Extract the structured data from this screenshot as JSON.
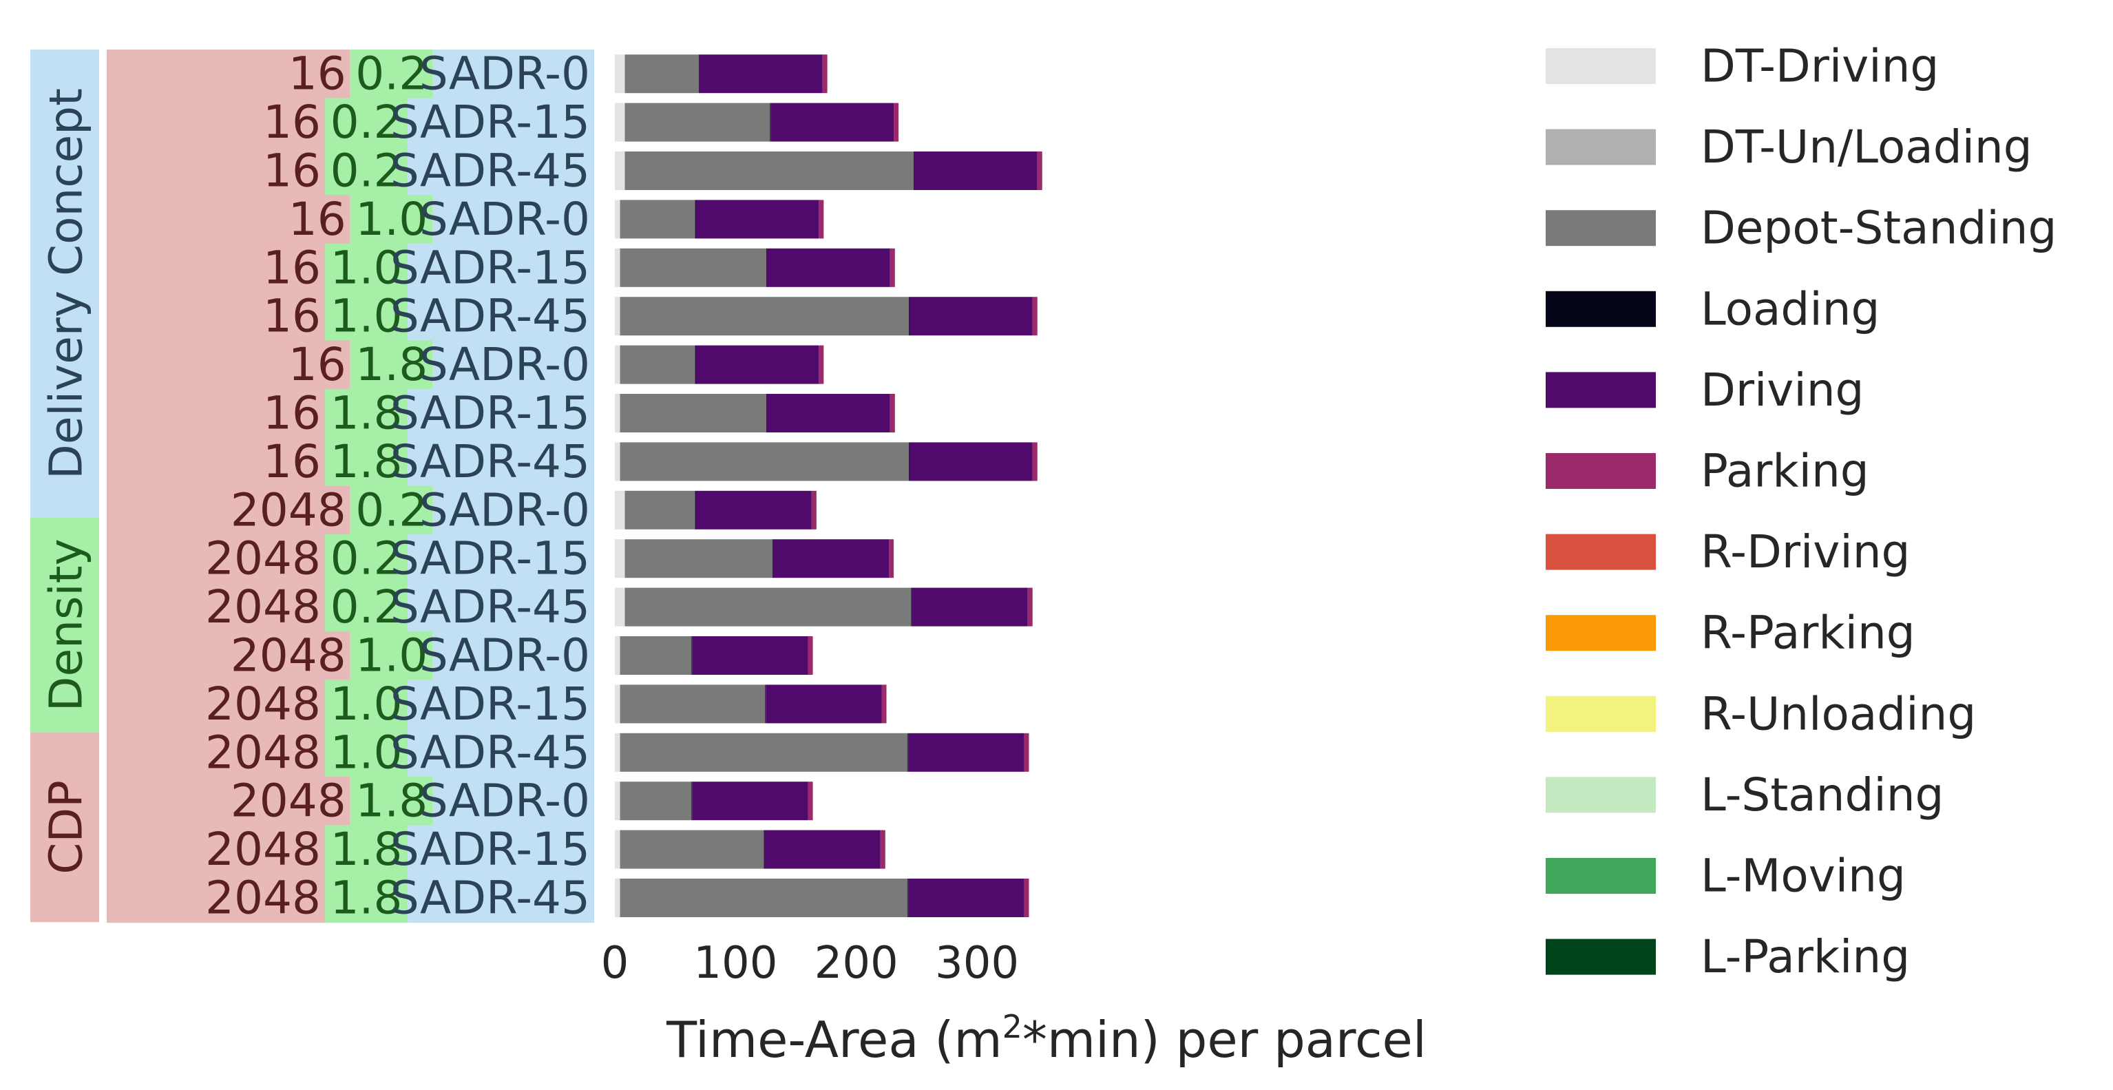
{
  "chart_data": {
    "type": "bar",
    "orientation": "horizontal",
    "stacked": true,
    "xlabel_pre": "Time-Area (m",
    "xlabel_sup": "2",
    "xlabel_post": "*min) per parcel",
    "xlim": [
      0,
      350
    ],
    "xticks": [
      0,
      100,
      200,
      300
    ],
    "group_axis_labels": {
      "concept": "Delivery Concept",
      "density": "Density",
      "cdp": "CDP"
    },
    "label_colors": {
      "cdp": "#e8b9b9",
      "density": "#a6efa6",
      "concept": "#c2e0f4",
      "cdp_text": "#5a1f1f",
      "density_text": "#1d5a1d",
      "concept_text": "#2c4257"
    },
    "rows": [
      {
        "cdp": "16",
        "density": "0.2",
        "concept": "SADR-0"
      },
      {
        "cdp": "16",
        "density": "0.2",
        "concept": "SADR-15"
      },
      {
        "cdp": "16",
        "density": "0.2",
        "concept": "SADR-45"
      },
      {
        "cdp": "16",
        "density": "1.0",
        "concept": "SADR-0"
      },
      {
        "cdp": "16",
        "density": "1.0",
        "concept": "SADR-15"
      },
      {
        "cdp": "16",
        "density": "1.0",
        "concept": "SADR-45"
      },
      {
        "cdp": "16",
        "density": "1.8",
        "concept": "SADR-0"
      },
      {
        "cdp": "16",
        "density": "1.8",
        "concept": "SADR-15"
      },
      {
        "cdp": "16",
        "density": "1.8",
        "concept": "SADR-45"
      },
      {
        "cdp": "2048",
        "density": "0.2",
        "concept": "SADR-0"
      },
      {
        "cdp": "2048",
        "density": "0.2",
        "concept": "SADR-15"
      },
      {
        "cdp": "2048",
        "density": "0.2",
        "concept": "SADR-45"
      },
      {
        "cdp": "2048",
        "density": "1.0",
        "concept": "SADR-0"
      },
      {
        "cdp": "2048",
        "density": "1.0",
        "concept": "SADR-15"
      },
      {
        "cdp": "2048",
        "density": "1.0",
        "concept": "SADR-45"
      },
      {
        "cdp": "2048",
        "density": "1.8",
        "concept": "SADR-0"
      },
      {
        "cdp": "2048",
        "density": "1.8",
        "concept": "SADR-15"
      },
      {
        "cdp": "2048",
        "density": "1.8",
        "concept": "SADR-45"
      }
    ],
    "series": [
      {
        "name": "DT-Driving",
        "color": "#e3e3e3",
        "values": [
          8,
          8,
          8,
          4,
          4,
          4,
          4,
          4,
          4,
          8,
          8,
          8,
          4,
          4,
          4,
          4,
          4,
          4
        ]
      },
      {
        "name": "DT-Un/Loading",
        "color": "#b0b0b0",
        "values": [
          0.5,
          0.5,
          0.5,
          0.5,
          0.5,
          0.5,
          0.5,
          0.5,
          0.5,
          0.5,
          0.5,
          0.5,
          0.5,
          0.5,
          0.5,
          0.5,
          0.5,
          0.5
        ]
      },
      {
        "name": "Depot-Standing",
        "color": "#7a7a7a",
        "values": [
          61,
          120,
          239,
          62,
          121,
          239,
          62,
          121,
          239,
          58,
          122,
          237,
          59,
          120,
          238,
          59,
          119,
          238
        ]
      },
      {
        "name": "Loading",
        "color": "#05051a",
        "values": [
          0.5,
          0.5,
          0.5,
          0.5,
          0.5,
          0.5,
          0.5,
          0.5,
          0.5,
          0.5,
          0.5,
          0.5,
          0.5,
          0.5,
          0.5,
          0.5,
          0.5,
          0.5
        ]
      },
      {
        "name": "Driving",
        "color": "#4f0a6c",
        "values": [
          102,
          102,
          102,
          102,
          102,
          102,
          102,
          102,
          102,
          96,
          96,
          96,
          96,
          96,
          96,
          96,
          96,
          96
        ]
      },
      {
        "name": "Parking",
        "color": "#9c2a6b",
        "values": [
          4,
          4,
          4,
          4,
          4,
          4,
          4,
          4,
          4,
          4,
          4,
          4,
          4,
          4,
          4,
          4,
          4,
          4
        ]
      },
      {
        "name": "R-Driving",
        "color": "#d9503f",
        "values": [
          0,
          0,
          0,
          0,
          0,
          0,
          0,
          0,
          0,
          0,
          0,
          0,
          0,
          0,
          0,
          0,
          0,
          0
        ]
      },
      {
        "name": "R-Parking",
        "color": "#fb9a06",
        "values": [
          0,
          0,
          0,
          0,
          0,
          0,
          0,
          0,
          0,
          0,
          0,
          0,
          0,
          0,
          0,
          0,
          0,
          0
        ]
      },
      {
        "name": "R-Unloading",
        "color": "#f2f27e",
        "values": [
          0,
          0,
          0,
          0,
          0,
          0,
          0,
          0,
          0,
          0,
          0,
          0,
          0,
          0,
          0,
          0,
          0,
          0
        ]
      },
      {
        "name": "L-Standing",
        "color": "#c4e8c0",
        "values": [
          0,
          0,
          0,
          0,
          0,
          0,
          0,
          0,
          0,
          0,
          0,
          0,
          0,
          0,
          0,
          0,
          0,
          0
        ]
      },
      {
        "name": "L-Moving",
        "color": "#3fa85a",
        "values": [
          0,
          0,
          0,
          0,
          0,
          0,
          0,
          0,
          0,
          0,
          0,
          0,
          0,
          0,
          0,
          0,
          0,
          0
        ]
      },
      {
        "name": "L-Parking",
        "color": "#00441b",
        "values": [
          0,
          0,
          0,
          0,
          0,
          0,
          0,
          0,
          0,
          0,
          0,
          0,
          0,
          0,
          0,
          0,
          0,
          0
        ]
      }
    ]
  }
}
